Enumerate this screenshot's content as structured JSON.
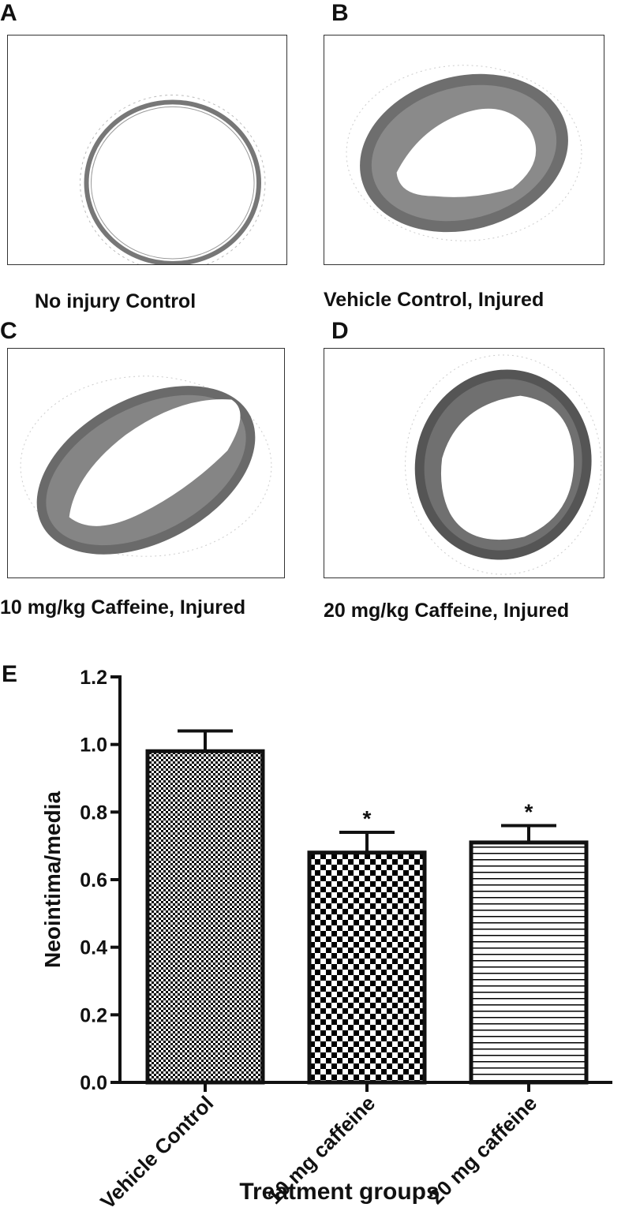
{
  "panels": [
    {
      "letter": "A",
      "caption": "No injury Control"
    },
    {
      "letter": "B",
      "caption": "Vehicle Control, Injured"
    },
    {
      "letter": "C",
      "caption": "10 mg/kg Caffeine, Injured"
    },
    {
      "letter": "D",
      "caption": "20 mg/kg Caffeine, Injured"
    }
  ],
  "chart_letter": "E",
  "chart_data": {
    "type": "bar",
    "categories": [
      "Vehicle Control",
      "10 mg caffeine",
      "20 mg caffeine"
    ],
    "values": [
      0.98,
      0.68,
      0.71
    ],
    "errors": [
      0.06,
      0.06,
      0.05
    ],
    "significance": [
      "",
      "*",
      "*"
    ],
    "patterns": [
      "fine-checker",
      "coarse-checker",
      "horizontal-lines"
    ],
    "xlabel": "Treatment groups",
    "ylabel": "Neointima/media",
    "ylim": [
      0,
      1.2
    ],
    "yticks": [
      "0.0",
      "0.2",
      "0.4",
      "0.6",
      "0.8",
      "1.0",
      "1.2"
    ]
  }
}
